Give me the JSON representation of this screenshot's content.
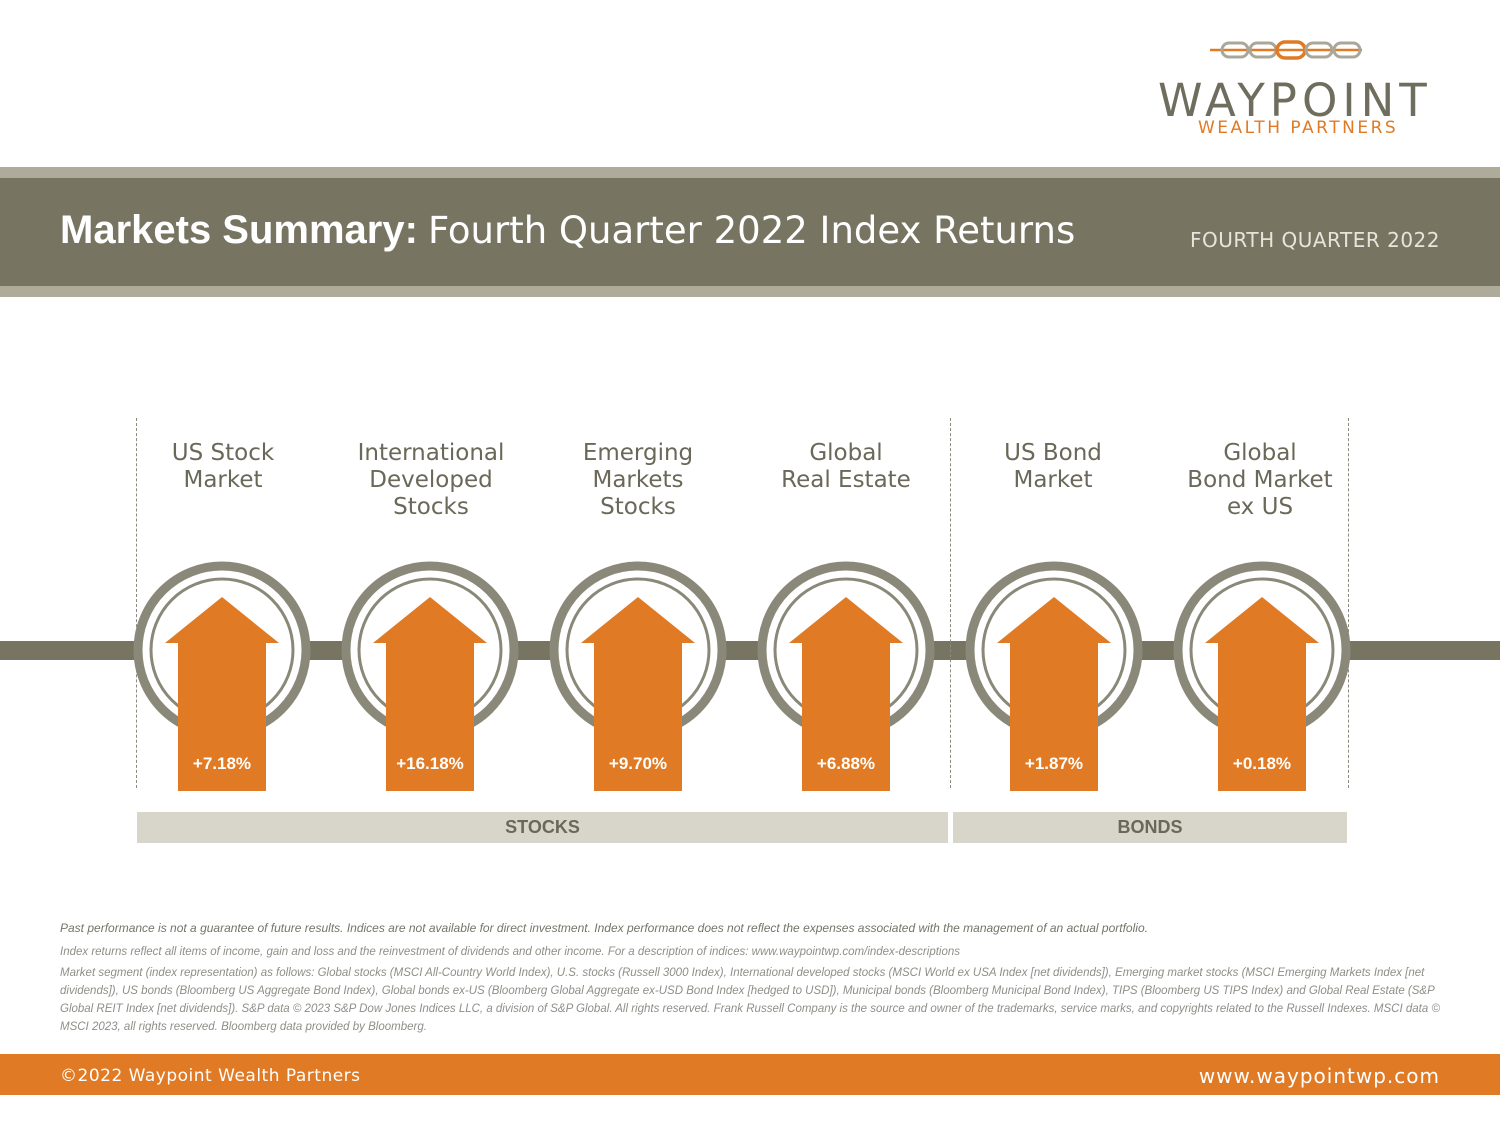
{
  "brand": {
    "name": "WAYPOINT",
    "tagline": "WEALTH PARTNERS",
    "accent_color": "#e07a24",
    "neutral_color": "#777562",
    "logo_icon": "chain-links-icon"
  },
  "header": {
    "title_bold": "Markets Summary:",
    "title_rest": "Fourth Quarter 2022 Index Returns",
    "period": "FOURTH QUARTER 2022"
  },
  "categories": [
    {
      "label": "US Stock\nMarket",
      "value": "+7.18%"
    },
    {
      "label": "International\nDeveloped\nStocks",
      "value": "+16.18%"
    },
    {
      "label": "Emerging\nMarkets\nStocks",
      "value": "+9.70%"
    },
    {
      "label": "Global\nReal Estate",
      "value": "+6.88%"
    },
    {
      "label": "US Bond\nMarket",
      "value": "+1.87%"
    },
    {
      "label": "Global\nBond Market\nex US",
      "value": "+0.18%"
    }
  ],
  "groups": {
    "stocks": "STOCKS",
    "bonds": "BONDS"
  },
  "footnotes": {
    "note1": "Past performance is not a guarantee of future results. Indices are not available for direct investment. Index performance does not reflect the expenses associated with the management of an actual portfolio.",
    "note2": "Index returns reflect all items of income, gain and loss and the reinvestment of dividends and other income. For a description of indices: www.waypointwp.com/index-descriptions",
    "note3": "Market segment (index representation) as follows: Global stocks (MSCI All-Country World Index), U.S. stocks (Russell 3000 Index), International developed stocks (MSCI World ex USA Index [net dividends]), Emerging market stocks (MSCI Emerging Markets Index [net dividends]), US bonds (Bloomberg US Aggregate Bond Index), Global bonds ex-US (Bloomberg Global Aggregate ex-USD Bond Index [hedged to USD]), Municipal bonds (Bloomberg Municipal Bond Index), TIPS (Bloomberg US TIPS Index) and Global Real Estate (S&P Global REIT Index [net dividends]). S&P data © 2023 S&P Dow Jones Indices LLC, a division of S&P Global. All rights reserved. Frank Russell Company is the source and owner of the trademarks, service marks, and copyrights related to the Russell Indexes. MSCI data © MSCI 2023, all rights reserved. Bloomberg data provided by Bloomberg."
  },
  "footer": {
    "copyright": "©2022 Waypoint Wealth Partners",
    "website": "www.waypointwp.com"
  }
}
